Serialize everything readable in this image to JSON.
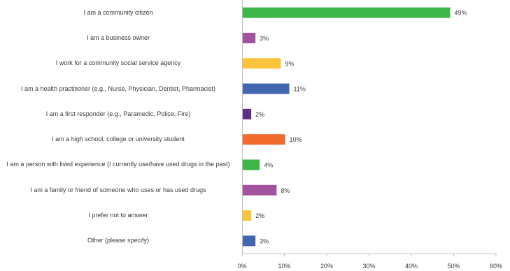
{
  "chart_data": {
    "type": "bar",
    "orientation": "horizontal",
    "categories": [
      "I am a community citizen",
      "I am a business owner",
      "I work for a community social service agency",
      "I am a health practitioner (e.g., Nurse, Physician, Dentist, Pharmacist)",
      "I am a first responder (e.g., Paramedic, Police, Fire)",
      "I am a high school, college or university student",
      "I am a person with lived experience (I currently use/have used drugs in the past)",
      "I am a family or friend of someone who uses or has used drugs",
      "I prefer not to answer",
      "Other (please specify)"
    ],
    "values": [
      49,
      3,
      9,
      11,
      2,
      10,
      4,
      8,
      2,
      3
    ],
    "data_labels": [
      "49%",
      "3%",
      "9%",
      "11%",
      "2%",
      "10%",
      "4%",
      "8%",
      "2%",
      "3%"
    ],
    "colors": [
      "#3cb54a",
      "#a3529f",
      "#fbc43a",
      "#4266b0",
      "#5b2e8c",
      "#f26a2e",
      "#3cb54a",
      "#a3529f",
      "#fbc43a",
      "#4266b0"
    ],
    "xlim": [
      0,
      60
    ],
    "x_ticks": [
      "0%",
      "10%",
      "20%",
      "30%",
      "40%",
      "50%",
      "60%"
    ],
    "grid": false,
    "legend": "none",
    "title": "",
    "xlabel": "",
    "ylabel": ""
  }
}
